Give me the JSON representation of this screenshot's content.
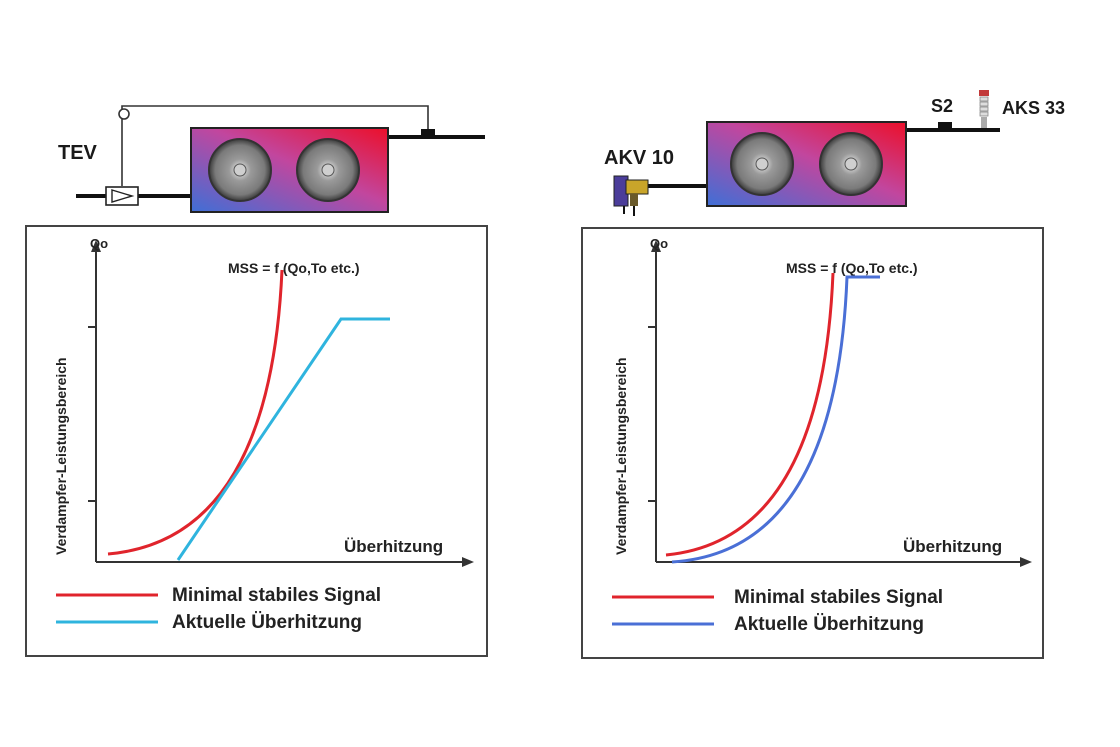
{
  "left": {
    "valve_label": "TEV",
    "y_axis_label": "Verdampfer-Leistungsbereich",
    "y_axis_top": "Qo",
    "x_axis_label": "Überhitzung",
    "mss_label": "MSS = f (Qo,To etc.)",
    "legend": [
      {
        "label": "Minimal stabiles Signal",
        "color": "#e0242c"
      },
      {
        "label": "Aktuelle Überhitzung",
        "color": "#2fb4de"
      }
    ]
  },
  "right": {
    "valve_label": "AKV 10",
    "sensor_label": "S2",
    "transmitter_label": "AKS 33",
    "y_axis_label": "Verdampfer-Leistungsbereich",
    "y_axis_top": "Qo",
    "x_axis_label": "Überhitzung",
    "mss_label": "MSS = f (Qo,To etc.)",
    "legend": [
      {
        "label": "Minimal stabiles Signal",
        "color": "#e0242c"
      },
      {
        "label": "Aktuelle Überhitzung",
        "color": "#4a6fd6"
      }
    ]
  },
  "colors": {
    "evaporator_top": "#e8102c",
    "evaporator_bottom": "#3f6fd6",
    "pipe": "#111111",
    "frame": "#333333"
  }
}
